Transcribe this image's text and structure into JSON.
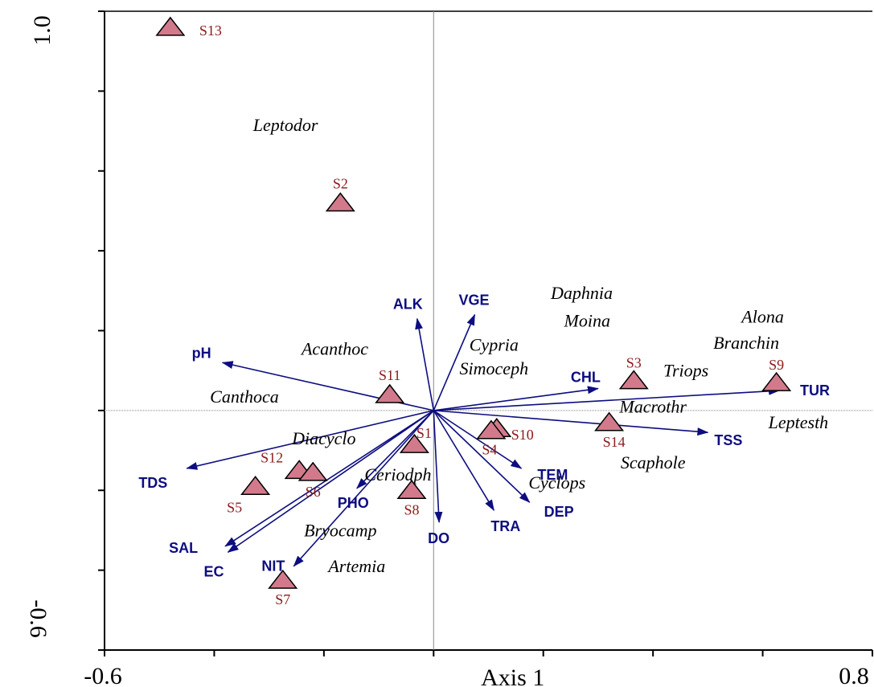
{
  "chart_data": {
    "type": "scatter",
    "subtype": "ordination-biplot",
    "xlabel": "Axis 1",
    "x_tick_labels": [
      "-0.6",
      "0.8"
    ],
    "y_tick_labels": [
      "1.0",
      "-0.6"
    ],
    "xlim": [
      -0.6,
      0.8
    ],
    "ylim": [
      -0.6,
      1.0
    ],
    "grid": false,
    "zero_lines": true,
    "colors": {
      "site_fill": "#d27a8c",
      "site_label": "#8b1a1a",
      "arrow": "#0d0d80",
      "zero_line": "#888888"
    },
    "sites": [
      {
        "label": "S13",
        "x": -0.48,
        "y": 0.96
      },
      {
        "label": "S2",
        "x": -0.17,
        "y": 0.52
      },
      {
        "label": "S11",
        "x": -0.08,
        "y": 0.04
      },
      {
        "label": "S1",
        "x": -0.035,
        "y": -0.085
      },
      {
        "label": "S10",
        "x": 0.115,
        "y": -0.045
      },
      {
        "label": "S4",
        "x": 0.105,
        "y": -0.05
      },
      {
        "label": "S3",
        "x": 0.365,
        "y": 0.075
      },
      {
        "label": "S9",
        "x": 0.625,
        "y": 0.07
      },
      {
        "label": "S14",
        "x": 0.32,
        "y": -0.03
      },
      {
        "label": "S8",
        "x": -0.04,
        "y": -0.2
      },
      {
        "label": "S12",
        "x": -0.245,
        "y": -0.15
      },
      {
        "label": "S6",
        "x": -0.22,
        "y": -0.155
      },
      {
        "label": "S5",
        "x": -0.325,
        "y": -0.19
      },
      {
        "label": "S7",
        "x": -0.275,
        "y": -0.425
      }
    ],
    "species": [
      {
        "label": "Leptodor",
        "x": -0.27,
        "y": 0.7
      },
      {
        "label": "Daphnia",
        "x": 0.27,
        "y": 0.28
      },
      {
        "label": "Moina",
        "x": 0.28,
        "y": 0.21
      },
      {
        "label": "Alona",
        "x": 0.6,
        "y": 0.22
      },
      {
        "label": "Branchin",
        "x": 0.57,
        "y": 0.155
      },
      {
        "label": "Cypria",
        "x": 0.11,
        "y": 0.15
      },
      {
        "label": "Acanthoc",
        "x": -0.18,
        "y": 0.14
      },
      {
        "label": "Simoceph",
        "x": 0.11,
        "y": 0.09
      },
      {
        "label": "Triops",
        "x": 0.46,
        "y": 0.085
      },
      {
        "label": "Canthoca",
        "x": -0.345,
        "y": 0.02
      },
      {
        "label": "Macrothr",
        "x": 0.4,
        "y": -0.005
      },
      {
        "label": "Leptesth",
        "x": 0.665,
        "y": -0.045
      },
      {
        "label": "Diacyclo",
        "x": -0.2,
        "y": -0.085
      },
      {
        "label": "Scaphole",
        "x": 0.4,
        "y": -0.145
      },
      {
        "label": "Ceriodph",
        "x": -0.065,
        "y": -0.175
      },
      {
        "label": "Cyclops",
        "x": 0.225,
        "y": -0.195
      },
      {
        "label": "Bryocamp",
        "x": -0.17,
        "y": -0.315
      },
      {
        "label": "Artemia",
        "x": -0.14,
        "y": -0.405
      }
    ],
    "env_vectors": [
      {
        "label": "ALK",
        "x": -0.03,
        "y": 0.23
      },
      {
        "label": "VGE",
        "x": 0.075,
        "y": 0.24
      },
      {
        "label": "pH",
        "x": -0.385,
        "y": 0.12
      },
      {
        "label": "CHL",
        "x": 0.3,
        "y": 0.055
      },
      {
        "label": "TUR",
        "x": 0.63,
        "y": 0.05
      },
      {
        "label": "TSS",
        "x": 0.5,
        "y": -0.055
      },
      {
        "label": "TEM",
        "x": 0.16,
        "y": -0.145
      },
      {
        "label": "DEP",
        "x": 0.175,
        "y": -0.23
      },
      {
        "label": "TRA",
        "x": 0.11,
        "y": -0.25
      },
      {
        "label": "DO",
        "x": 0.01,
        "y": -0.28
      },
      {
        "label": "PHO",
        "x": -0.14,
        "y": -0.195
      },
      {
        "label": "NIT",
        "x": -0.255,
        "y": -0.39
      },
      {
        "label": "TDS",
        "x": -0.45,
        "y": -0.145
      },
      {
        "label": "SAL",
        "x": -0.38,
        "y": -0.34
      },
      {
        "label": "EC",
        "x": -0.375,
        "y": -0.355
      }
    ]
  }
}
